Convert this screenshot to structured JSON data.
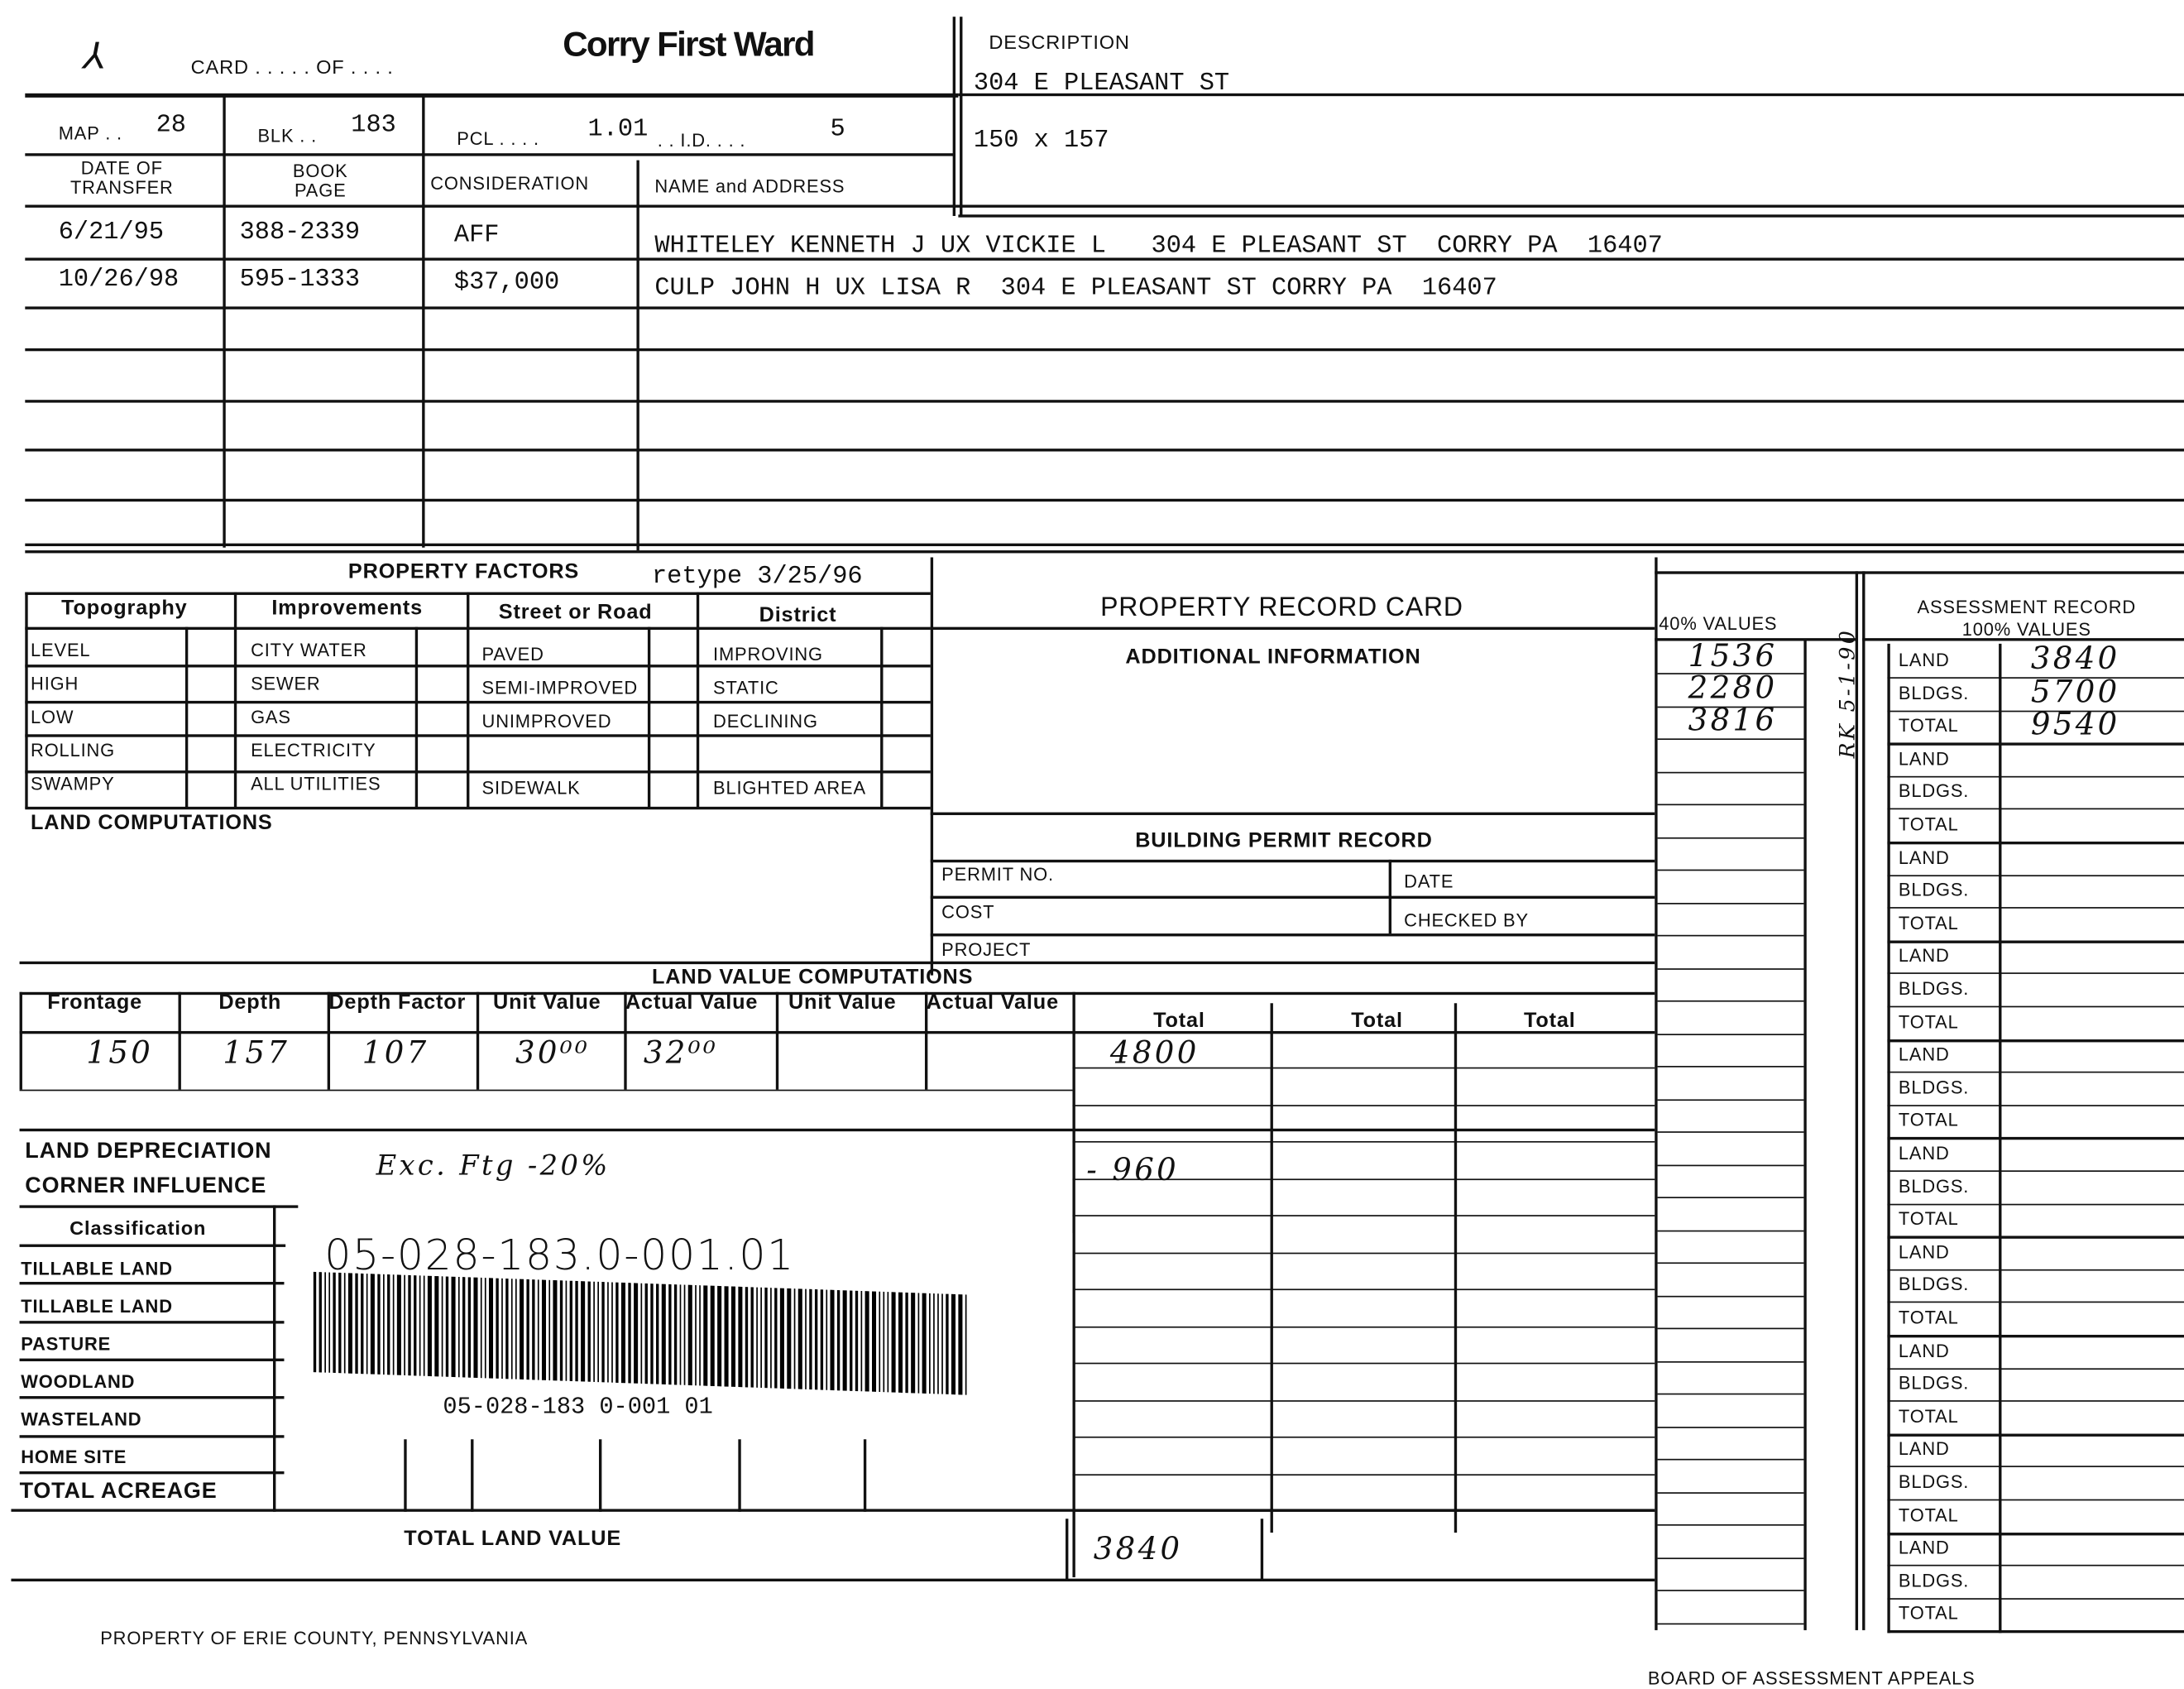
{
  "header": {
    "mark": "⅄",
    "card_label": "CARD . . . . . OF . . . .",
    "title": "Corry First Ward",
    "description_label": "DESCRIPTION",
    "description_line1": "304 E PLEASANT ST",
    "description_line2": "150 x 157"
  },
  "ids": {
    "map_label": "MAP . .",
    "map": "28",
    "blk_label": "BLK . .",
    "blk": "183",
    "pcl_label": "PCL . . . .",
    "pcl": "1.01",
    "id_label": ". . I.D. . . .",
    "id": "5"
  },
  "transfers": {
    "headers": [
      "DATE OF TRANSFER",
      "BOOK PAGE",
      "CONSIDERATION",
      "NAME and ADDRESS"
    ],
    "rows": [
      {
        "date": "6/21/95",
        "book": "388-2339",
        "consideration": "AFF",
        "name": "WHITELEY KENNETH J UX VICKIE L   304 E PLEASANT ST  CORRY PA  16407"
      },
      {
        "date": "10/26/98",
        "book": "595-1333",
        "consideration": "$37,000",
        "name": "CULP JOHN H UX LISA R  304 E PLEASANT ST CORRY PA  16407"
      }
    ]
  },
  "factors": {
    "title": "PROPERTY FACTORS",
    "retype": "retype 3/25/96",
    "columns": [
      "Topography",
      "Improvements",
      "Street or Road",
      "District"
    ],
    "topography": [
      "LEVEL",
      "HIGH",
      "LOW",
      "ROLLING",
      "SWAMPY"
    ],
    "improvements": [
      "CITY WATER",
      "SEWER",
      "GAS",
      "ELECTRICITY",
      "ALL UTILITIES"
    ],
    "street": [
      "PAVED",
      "SEMI-IMPROVED",
      "UNIMPROVED",
      "",
      "SIDEWALK"
    ],
    "district": [
      "IMPROVING",
      "STATIC",
      "DECLINING",
      "",
      "BLIGHTED AREA"
    ]
  },
  "land_computations_label": "LAND COMPUTATIONS",
  "record": {
    "title": "PROPERTY RECORD CARD",
    "additional": "ADDITIONAL INFORMATION",
    "permit_title": "BUILDING PERMIT RECORD",
    "permit_no": "PERMIT NO.",
    "date": "DATE",
    "cost": "COST",
    "checked_by": "CHECKED BY",
    "project": "PROJECT"
  },
  "land_value": {
    "title": "LAND VALUE COMPUTATIONS",
    "headers": [
      "Frontage",
      "Depth",
      "Depth Factor",
      "Unit Value",
      "Actual Value",
      "Unit Value",
      "Actual Value",
      "Total",
      "Total",
      "Total"
    ],
    "values": [
      "150",
      "157",
      "107",
      "30⁰⁰",
      "32⁰⁰",
      "",
      "",
      "4800"
    ],
    "depreciation_label": "LAND DEPRECIATION",
    "depreciation_note": "Exc. Ftg -20%",
    "depreciation_value": "- 960",
    "corner_label": "CORNER INFLUENCE",
    "classification_label": "Classification",
    "classes": [
      "TILLABLE LAND",
      "TILLABLE LAND",
      "PASTURE",
      "WOODLAND",
      "WASTELAND",
      "HOME SITE"
    ],
    "total_acreage": "TOTAL ACREAGE",
    "total_land_value_label": "TOTAL LAND VALUE",
    "total_land_value": "3840"
  },
  "sticker": {
    "handwritten_id": "05-028-183.0-001.01",
    "printed_id": "05-028-183 0-001 01"
  },
  "values40": {
    "label": "40% VALUES",
    "entries": [
      "1536",
      "2280",
      "3816"
    ],
    "side_note": "RK 5-1-90"
  },
  "assessment": {
    "label": "ASSESSMENT RECORD",
    "sublabel": "100% VALUES",
    "row_labels": [
      "LAND",
      "BLDGS.",
      "TOTAL"
    ],
    "groups": 10,
    "values": [
      "3840",
      "5700",
      "9540"
    ]
  },
  "footer": {
    "left": "PROPERTY OF ERIE COUNTY, PENNSYLVANIA",
    "right": "BOARD OF ASSESSMENT APPEALS"
  }
}
